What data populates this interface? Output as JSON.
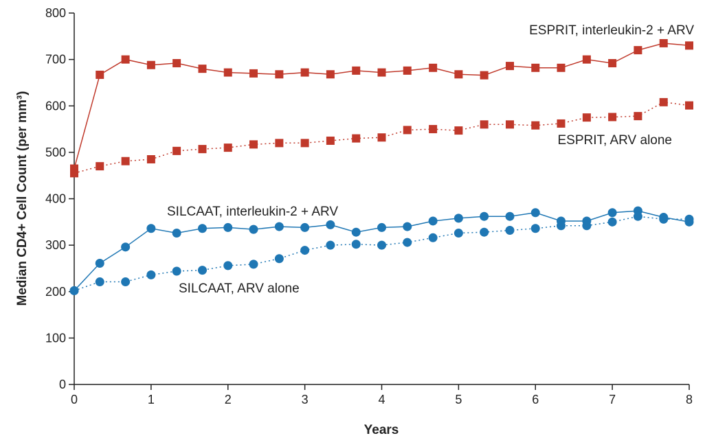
{
  "chart_data": {
    "type": "line",
    "title": "",
    "xlabel": "Years",
    "ylabel": "Median CD4+ Cell Count (per mm³)",
    "xlim": [
      0,
      8
    ],
    "ylim": [
      0,
      800
    ],
    "x_ticks": [
      0,
      1,
      2,
      3,
      4,
      5,
      6,
      7,
      8
    ],
    "y_ticks": [
      0,
      100,
      200,
      300,
      400,
      500,
      600,
      700,
      800
    ],
    "grid": false,
    "legend": "none (series labeled directly on the plot)",
    "series": [
      {
        "name": "ESPRIT, interleukin-2 + ARV",
        "color": "#c0392b",
        "marker": "square",
        "line": "solid",
        "x": [
          0,
          0.333,
          0.667,
          1,
          1.333,
          1.667,
          2,
          2.333,
          2.667,
          3,
          3.333,
          3.667,
          4,
          4.333,
          4.667,
          5,
          5.333,
          5.667,
          6,
          6.333,
          6.667,
          7,
          7.333,
          7.667,
          8
        ],
        "y": [
          465,
          667,
          700,
          688,
          692,
          680,
          672,
          670,
          668,
          672,
          668,
          676,
          672,
          676,
          682,
          668,
          666,
          686,
          682,
          682,
          700,
          692,
          720,
          735,
          730
        ]
      },
      {
        "name": "ESPRIT, ARV alone",
        "color": "#c0392b",
        "marker": "square",
        "line": "dotted",
        "x": [
          0,
          0.333,
          0.667,
          1,
          1.333,
          1.667,
          2,
          2.333,
          2.667,
          3,
          3.333,
          3.667,
          4,
          4.333,
          4.667,
          5,
          5.333,
          5.667,
          6,
          6.333,
          6.667,
          7,
          7.333,
          7.667,
          8
        ],
        "y": [
          455,
          470,
          481,
          485,
          503,
          507,
          510,
          517,
          520,
          520,
          525,
          530,
          532,
          548,
          550,
          547,
          560,
          560,
          558,
          562,
          575,
          576,
          578,
          608,
          601
        ]
      },
      {
        "name": "SILCAAT, interleukin-2 + ARV",
        "color": "#1f77b4",
        "marker": "circle",
        "line": "solid",
        "x": [
          0,
          0.333,
          0.667,
          1,
          1.333,
          1.667,
          2,
          2.333,
          2.667,
          3,
          3.333,
          3.667,
          4,
          4.333,
          4.667,
          5,
          5.333,
          5.667,
          6,
          6.333,
          6.667,
          7,
          7.333,
          7.667,
          8
        ],
        "y": [
          202,
          261,
          296,
          336,
          326,
          336,
          338,
          334,
          340,
          338,
          344,
          328,
          338,
          340,
          352,
          358,
          362,
          362,
          370,
          352,
          352,
          370,
          374,
          360,
          350
        ]
      },
      {
        "name": "SILCAAT, ARV alone",
        "color": "#1f77b4",
        "marker": "circle",
        "line": "dotted",
        "x": [
          0,
          0.333,
          0.667,
          1,
          1.333,
          1.667,
          2,
          2.333,
          2.667,
          3,
          3.333,
          3.667,
          4,
          4.333,
          4.667,
          5,
          5.333,
          5.667,
          6,
          6.333,
          6.667,
          7,
          7.333,
          7.667,
          8
        ],
        "y": [
          202,
          221,
          221,
          236,
          244,
          246,
          256,
          259,
          271,
          289,
          300,
          302,
          300,
          306,
          316,
          326,
          328,
          332,
          336,
          342,
          342,
          350,
          362,
          356,
          356
        ]
      }
    ],
    "annotations": [
      {
        "text": "ESPRIT, interleukin-2 + ARV",
        "series": 0
      },
      {
        "text": "ESPRIT, ARV alone",
        "series": 1
      },
      {
        "text": "SILCAAT, interleukin-2 + ARV",
        "series": 2
      },
      {
        "text": "SILCAAT, ARV alone",
        "series": 3
      }
    ]
  }
}
